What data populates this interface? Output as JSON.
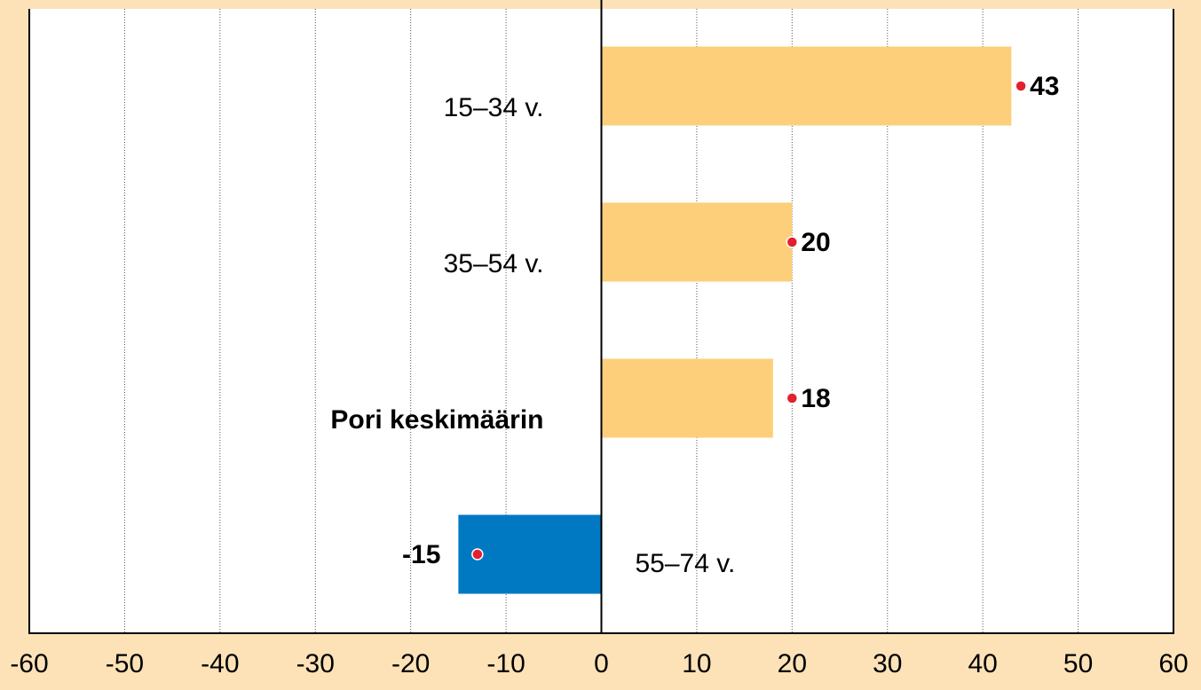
{
  "chart_data": {
    "type": "bar",
    "orientation": "horizontal",
    "categories": [
      "15–34 v.",
      "35–54 v.",
      "Pori keskimäärin",
      "55–74 v."
    ],
    "series": [
      {
        "colors": [
          "#fdcf7a",
          "#fdcf7a",
          "#fdcf7a",
          "#0079c2"
        ],
        "values": [
          43,
          20,
          18,
          -15
        ]
      },
      {
        "color": "#e3202e",
        "values": [
          44,
          20,
          20,
          -13
        ]
      }
    ],
    "xlim": [
      -60,
      60
    ],
    "xticks": [
      -60,
      -50,
      -40,
      -30,
      -20,
      -10,
      0,
      10,
      20,
      30,
      40,
      50,
      60
    ],
    "grid": true
  }
}
